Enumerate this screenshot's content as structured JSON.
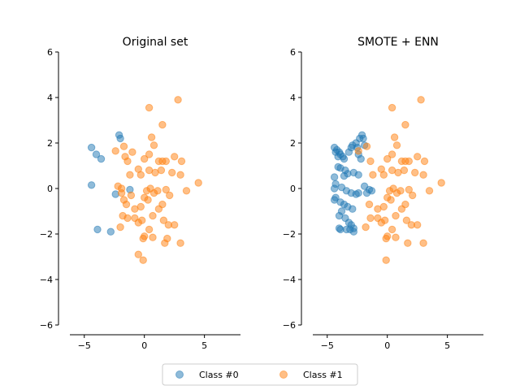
{
  "colors": {
    "class0": "#1f77b4",
    "class1": "#ff7f0e"
  },
  "legend": {
    "class0_label": "Class #0",
    "class1_label": "Class #1",
    "placement": "bottom-center"
  },
  "chart_data": [
    {
      "type": "scatter",
      "title": "Original set",
      "xlim": [
        -6.2,
        8
      ],
      "ylim": [
        -6,
        6
      ],
      "xticks": [
        -5,
        0,
        5
      ],
      "yticks": [
        -6,
        -4,
        -2,
        0,
        2,
        4,
        6
      ],
      "series": [
        {
          "name": "Class #0",
          "points": [
            [
              -4.4,
              1.8
            ],
            [
              -4.0,
              1.5
            ],
            [
              -3.6,
              1.3
            ],
            [
              -4.4,
              0.15
            ],
            [
              -2.1,
              2.35
            ],
            [
              -2.0,
              2.2
            ],
            [
              -1.2,
              -0.05
            ],
            [
              -2.4,
              -0.25
            ],
            [
              -3.9,
              -1.8
            ],
            [
              -2.8,
              -1.9
            ]
          ]
        },
        {
          "name": "Class #1",
          "points": [
            [
              0.4,
              3.55
            ],
            [
              2.8,
              3.9
            ],
            [
              1.5,
              2.8
            ],
            [
              0.6,
              2.25
            ],
            [
              0.8,
              1.9
            ],
            [
              -1.0,
              1.6
            ],
            [
              -1.7,
              1.85
            ],
            [
              -2.4,
              1.65
            ],
            [
              -1.6,
              1.4
            ],
            [
              -1.4,
              1.2
            ],
            [
              0.0,
              1.3
            ],
            [
              0.4,
              1.5
            ],
            [
              1.2,
              1.2
            ],
            [
              1.5,
              1.2
            ],
            [
              1.8,
              1.2
            ],
            [
              2.5,
              1.4
            ],
            [
              3.1,
              1.2
            ],
            [
              -0.5,
              0.85
            ],
            [
              -0.3,
              0.6
            ],
            [
              0.4,
              0.8
            ],
            [
              0.9,
              0.7
            ],
            [
              1.4,
              0.8
            ],
            [
              2.3,
              0.7
            ],
            [
              3.0,
              0.6
            ],
            [
              4.5,
              0.25
            ],
            [
              -1.2,
              0.6
            ],
            [
              -2.2,
              0.1
            ],
            [
              -1.9,
              0.0
            ],
            [
              -1.9,
              -0.2
            ],
            [
              -1.1,
              -0.3
            ],
            [
              0.2,
              -0.1
            ],
            [
              0.5,
              0.0
            ],
            [
              0.8,
              -0.2
            ],
            [
              1.1,
              -0.1
            ],
            [
              1.8,
              -0.05
            ],
            [
              2.1,
              -0.3
            ],
            [
              3.5,
              -0.1
            ],
            [
              -1.7,
              -0.5
            ],
            [
              -1.5,
              -0.7
            ],
            [
              -0.8,
              -0.9
            ],
            [
              -0.3,
              -0.8
            ],
            [
              0.0,
              -0.4
            ],
            [
              0.3,
              -0.5
            ],
            [
              1.2,
              -0.9
            ],
            [
              1.5,
              -0.7
            ],
            [
              -1.8,
              -1.2
            ],
            [
              -1.4,
              -1.3
            ],
            [
              -0.8,
              -1.3
            ],
            [
              -0.5,
              -1.5
            ],
            [
              -0.2,
              -1.4
            ],
            [
              0.7,
              -1.2
            ],
            [
              1.6,
              -1.4
            ],
            [
              2.0,
              -1.6
            ],
            [
              2.5,
              -1.6
            ],
            [
              -2.0,
              -1.7
            ],
            [
              0.4,
              -1.8
            ],
            [
              1.9,
              -2.2
            ],
            [
              0.0,
              -2.1
            ],
            [
              -0.1,
              -2.2
            ],
            [
              0.7,
              -2.15
            ],
            [
              1.7,
              -2.4
            ],
            [
              3.0,
              -2.4
            ],
            [
              -0.5,
              -2.9
            ],
            [
              -0.1,
              -3.15
            ]
          ]
        }
      ]
    },
    {
      "type": "scatter",
      "title": "SMOTE + ENN",
      "xlim": [
        -6.2,
        8
      ],
      "ylim": [
        -6,
        6
      ],
      "xticks": [
        -5,
        0,
        5
      ],
      "yticks": [
        -6,
        -4,
        -2,
        0,
        2,
        4,
        6
      ],
      "series": [
        {
          "name": "Class #0",
          "points": [
            [
              -4.4,
              1.8
            ],
            [
              -4.2,
              1.7
            ],
            [
              -4.0,
              1.6
            ],
            [
              -3.9,
              1.5
            ],
            [
              -3.7,
              1.4
            ],
            [
              -4.3,
              1.6
            ],
            [
              -4.1,
              1.4
            ],
            [
              -3.6,
              1.3
            ],
            [
              -3.2,
              1.6
            ],
            [
              -3.0,
              1.8
            ],
            [
              -2.9,
              1.9
            ],
            [
              -2.6,
              2.0
            ],
            [
              -2.3,
              2.2
            ],
            [
              -2.1,
              2.35
            ],
            [
              -2.0,
              2.2
            ],
            [
              -2.5,
              1.8
            ],
            [
              -2.4,
              1.5
            ],
            [
              -2.2,
              1.3
            ],
            [
              -1.9,
              1.9
            ],
            [
              -4.1,
              0.95
            ],
            [
              -3.9,
              0.9
            ],
            [
              -3.5,
              0.8
            ],
            [
              -3.3,
              0.65
            ],
            [
              -3.6,
              0.55
            ],
            [
              -2.8,
              0.7
            ],
            [
              -2.4,
              0.6
            ],
            [
              -4.4,
              0.5
            ],
            [
              -4.3,
              0.2
            ],
            [
              -4.4,
              0.0
            ],
            [
              -3.8,
              0.05
            ],
            [
              -3.4,
              -0.1
            ],
            [
              -3.0,
              -0.2
            ],
            [
              -2.6,
              -0.25
            ],
            [
              -2.4,
              -0.2
            ],
            [
              -1.9,
              0.1
            ],
            [
              -1.5,
              -0.05
            ],
            [
              -1.3,
              -0.1
            ],
            [
              -1.7,
              -0.2
            ],
            [
              -4.3,
              -0.4
            ],
            [
              -4.4,
              -0.5
            ],
            [
              -3.9,
              -0.6
            ],
            [
              -3.6,
              -0.7
            ],
            [
              -3.3,
              -0.8
            ],
            [
              -2.9,
              -0.9
            ],
            [
              -3.8,
              -1.0
            ],
            [
              -4.0,
              -1.2
            ],
            [
              -3.5,
              -1.3
            ],
            [
              -3.2,
              -1.5
            ],
            [
              -3.0,
              -1.6
            ],
            [
              -2.8,
              -1.75
            ],
            [
              -3.1,
              -1.8
            ],
            [
              -3.4,
              -1.8
            ],
            [
              -3.9,
              -1.8
            ],
            [
              -4.0,
              -1.75
            ],
            [
              -2.8,
              -1.9
            ]
          ]
        },
        {
          "name": "Class #1",
          "points": [
            [
              0.4,
              3.55
            ],
            [
              2.8,
              3.9
            ],
            [
              1.5,
              2.8
            ],
            [
              0.6,
              2.25
            ],
            [
              0.8,
              1.9
            ],
            [
              -1.7,
              1.85
            ],
            [
              -2.4,
              1.65
            ],
            [
              -1.4,
              1.2
            ],
            [
              0.0,
              1.3
            ],
            [
              0.4,
              1.5
            ],
            [
              1.2,
              1.2
            ],
            [
              1.5,
              1.2
            ],
            [
              1.8,
              1.2
            ],
            [
              2.5,
              1.4
            ],
            [
              3.1,
              1.2
            ],
            [
              -0.5,
              0.85
            ],
            [
              -0.3,
              0.6
            ],
            [
              0.4,
              0.8
            ],
            [
              0.9,
              0.7
            ],
            [
              1.4,
              0.8
            ],
            [
              2.3,
              0.7
            ],
            [
              3.0,
              0.6
            ],
            [
              4.5,
              0.25
            ],
            [
              -1.2,
              0.6
            ],
            [
              0.2,
              -0.1
            ],
            [
              0.5,
              0.0
            ],
            [
              0.8,
              -0.2
            ],
            [
              1.1,
              -0.1
            ],
            [
              1.8,
              -0.05
            ],
            [
              2.1,
              -0.3
            ],
            [
              3.5,
              -0.1
            ],
            [
              -1.5,
              -0.7
            ],
            [
              -0.8,
              -0.9
            ],
            [
              -0.3,
              -0.8
            ],
            [
              0.0,
              -0.4
            ],
            [
              0.3,
              -0.5
            ],
            [
              1.2,
              -0.9
            ],
            [
              1.5,
              -0.7
            ],
            [
              -1.4,
              -1.3
            ],
            [
              -0.8,
              -1.3
            ],
            [
              -0.5,
              -1.5
            ],
            [
              -0.2,
              -1.4
            ],
            [
              0.7,
              -1.2
            ],
            [
              1.6,
              -1.4
            ],
            [
              2.0,
              -1.6
            ],
            [
              2.5,
              -1.6
            ],
            [
              -1.8,
              -1.7
            ],
            [
              0.4,
              -1.8
            ],
            [
              0.0,
              -2.1
            ],
            [
              -0.1,
              -2.2
            ],
            [
              0.7,
              -2.15
            ],
            [
              1.7,
              -2.4
            ],
            [
              3.0,
              -2.4
            ],
            [
              -0.1,
              -3.15
            ]
          ]
        }
      ]
    }
  ]
}
